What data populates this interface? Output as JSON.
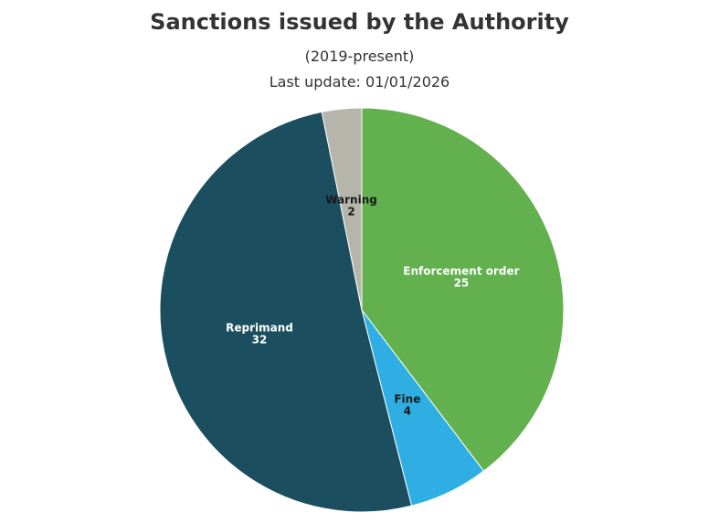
{
  "chart_data": {
    "type": "pie",
    "title": "Sanctions issued by the Authority",
    "subtitle": "(2019-present)",
    "update_note": "Last update: 01/01/2026",
    "slices": [
      {
        "label": "Enforcement order",
        "value": 25,
        "color": "#62b04e",
        "label_color": "#ffffff"
      },
      {
        "label": "Fine",
        "value": 4,
        "color": "#2eaee3",
        "label_color": "#1a1a1a"
      },
      {
        "label": "Reprimand",
        "value": 32,
        "color": "#1b4f5f",
        "label_color": "#ffffff"
      },
      {
        "label": "Warning",
        "value": 2,
        "color": "#b5b5ab",
        "label_color": "#1a1a1a"
      }
    ]
  }
}
